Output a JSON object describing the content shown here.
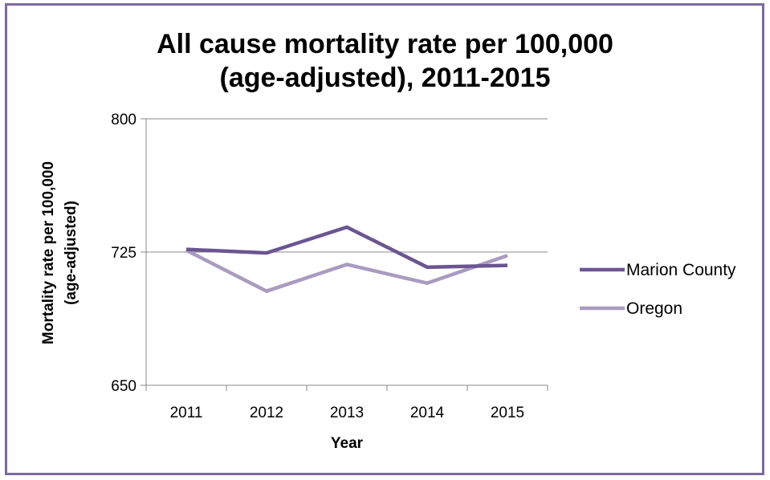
{
  "chart_data": {
    "type": "line",
    "title_line1": "All cause mortality rate per 100,000",
    "title_line2": "(age-adjusted), 2011-2015",
    "xlabel": "Year",
    "ylabel_line1": "Mortality rate per 100,000",
    "ylabel_line2": "(age-adjusted)",
    "categories": [
      "2011",
      "2012",
      "2013",
      "2014",
      "2015"
    ],
    "ylim": [
      650,
      800
    ],
    "yticks": [
      650,
      725,
      800
    ],
    "ytick_labels": [
      "650",
      "725",
      "800"
    ],
    "grid": true,
    "legend_position": "right",
    "series": [
      {
        "name": "Marion County",
        "color": "#6b5591",
        "values": [
          726.5,
          724.5,
          739,
          716.5,
          717.5
        ]
      },
      {
        "name": "Oregon",
        "color": "#a99bc0",
        "values": [
          726,
          703,
          718,
          707.5,
          723
        ]
      }
    ]
  }
}
